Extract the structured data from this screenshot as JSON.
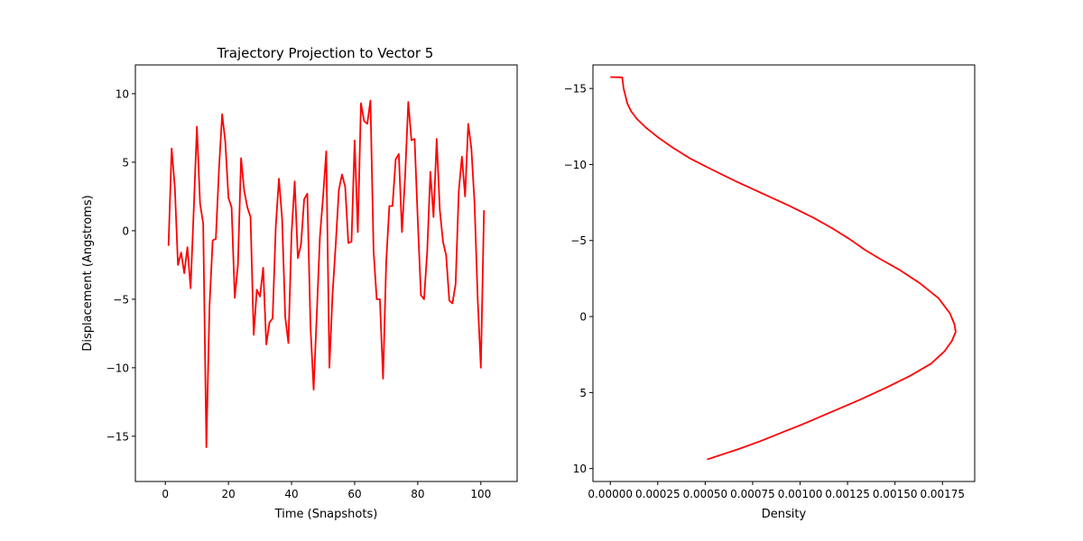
{
  "chart_data": [
    {
      "type": "line",
      "title": "Trajectory Projection to Vector 5",
      "xlabel": "Time (Snapshots)",
      "ylabel": "Displacement (Angstroms)",
      "xlim": [
        -9.5,
        111.5
      ],
      "ylim": [
        -18.3,
        12.1
      ],
      "xticks": [
        0,
        20,
        40,
        60,
        80,
        100
      ],
      "yticks": [
        -15,
        -10,
        -5,
        0,
        5,
        10
      ],
      "xtick_labels": [
        "0",
        "20",
        "40",
        "60",
        "80",
        "100"
      ],
      "ytick_labels": [
        "−15",
        "−10",
        "−5",
        "0",
        "5",
        "10"
      ],
      "color": "#ff0000",
      "series": [
        {
          "x": [
            1,
            2,
            3,
            4,
            5,
            6,
            7,
            8,
            9,
            10,
            11,
            12,
            13,
            14,
            15,
            16,
            17,
            18,
            19,
            20,
            21,
            22,
            23,
            24,
            25,
            26,
            27,
            28,
            29,
            30,
            31,
            32,
            33,
            34,
            35,
            36,
            37,
            38,
            39,
            40,
            41,
            42,
            43,
            44,
            45,
            46,
            47,
            48,
            49,
            50,
            51,
            52,
            53,
            54,
            55,
            56,
            57,
            58,
            59,
            60,
            61,
            62,
            63,
            64,
            65,
            66,
            67,
            68,
            69,
            70,
            71,
            72,
            73,
            74,
            75,
            76,
            77,
            78,
            79,
            80,
            81,
            82,
            83,
            84,
            85,
            86,
            87,
            88,
            89,
            90,
            91,
            92,
            93,
            94,
            95,
            96,
            97,
            98,
            99,
            100,
            101
          ],
          "values": [
            -1.1,
            6.0,
            3.2,
            -2.5,
            -1.6,
            -3.1,
            -1.2,
            -4.2,
            1.5,
            7.6,
            2.0,
            0.5,
            -15.8,
            -5.5,
            -0.7,
            -0.6,
            4.5,
            8.5,
            6.5,
            2.4,
            1.7,
            -4.9,
            -2.5,
            5.3,
            2.9,
            1.7,
            1.0,
            -7.6,
            -4.3,
            -4.8,
            -2.7,
            -8.3,
            -6.7,
            -6.4,
            0.3,
            3.8,
            0.9,
            -6.3,
            -8.2,
            -0.2,
            3.6,
            -2.0,
            -1.0,
            2.3,
            2.7,
            -7.0,
            -11.6,
            -6.1,
            -0.4,
            2.5,
            5.8,
            -10.0,
            -4.6,
            -1.0,
            3.0,
            4.1,
            3.2,
            -0.9,
            -0.8,
            6.6,
            -0.1,
            9.3,
            8.0,
            7.8,
            9.5,
            -1.5,
            -5.0,
            -5.0,
            -10.8,
            -2.3,
            1.8,
            1.8,
            5.2,
            5.6,
            -0.1,
            4.0,
            9.4,
            6.6,
            6.7,
            0.8,
            -4.7,
            -5.0,
            -1.5,
            4.3,
            1.0,
            6.7,
            1.5,
            -0.8,
            -1.8,
            -5.1,
            -5.3,
            -3.9,
            2.9,
            5.4,
            2.5,
            7.8,
            6.0,
            2.0,
            -5.0,
            -10.0,
            1.5
          ]
        }
      ]
    },
    {
      "type": "line",
      "title": "",
      "xlabel": "Density",
      "ylabel": "",
      "xlim": [
        -9.15e-05,
        0.00192
      ],
      "ylim": [
        -16.55,
        10.85
      ],
      "y_inverted": true,
      "xticks": [
        0,
        0.00025,
        0.0005,
        0.00075,
        0.001,
        0.00125,
        0.0015,
        0.00175
      ],
      "yticks": [
        -15,
        -10,
        -5,
        0,
        5,
        10
      ],
      "xtick_labels": [
        "0.00000",
        "0.00025",
        "0.00050",
        "0.00075",
        "0.00100",
        "0.00125",
        "0.00150",
        "0.00175"
      ],
      "ytick_labels": [
        "−15",
        "−10",
        "−5",
        "0",
        "5",
        "10"
      ],
      "color": "#ff0000",
      "series": [
        {
          "x": [
            0.0,
            6.3e-05,
            7e-05,
            9e-05,
            0.00011,
            0.00014,
            0.00019,
            0.00025,
            0.00033,
            0.00042,
            0.00053,
            0.00066,
            0.0008,
            0.00094,
            0.00107,
            0.00117,
            0.00126,
            0.00134,
            0.00142,
            0.00152,
            0.00163,
            0.00173,
            0.00179,
            0.001813,
            0.00182,
            0.0018,
            0.00176,
            0.00169,
            0.00158,
            0.00145,
            0.00131,
            0.00116,
            0.00103,
            0.00091,
            0.00079,
            0.00068,
            0.00051
          ],
          "values": [
            -15.75,
            -15.73,
            -15.0,
            -14.0,
            -13.5,
            -13.0,
            -12.4,
            -11.8,
            -11.1,
            -10.4,
            -9.7,
            -8.9,
            -8.1,
            -7.3,
            -6.5,
            -5.8,
            -5.1,
            -4.4,
            -3.8,
            -3.1,
            -2.2,
            -1.2,
            -0.2,
            0.5,
            1.0,
            1.6,
            2.3,
            3.1,
            3.9,
            4.7,
            5.5,
            6.3,
            7.0,
            7.6,
            8.2,
            8.7,
            9.4
          ]
        }
      ]
    }
  ]
}
